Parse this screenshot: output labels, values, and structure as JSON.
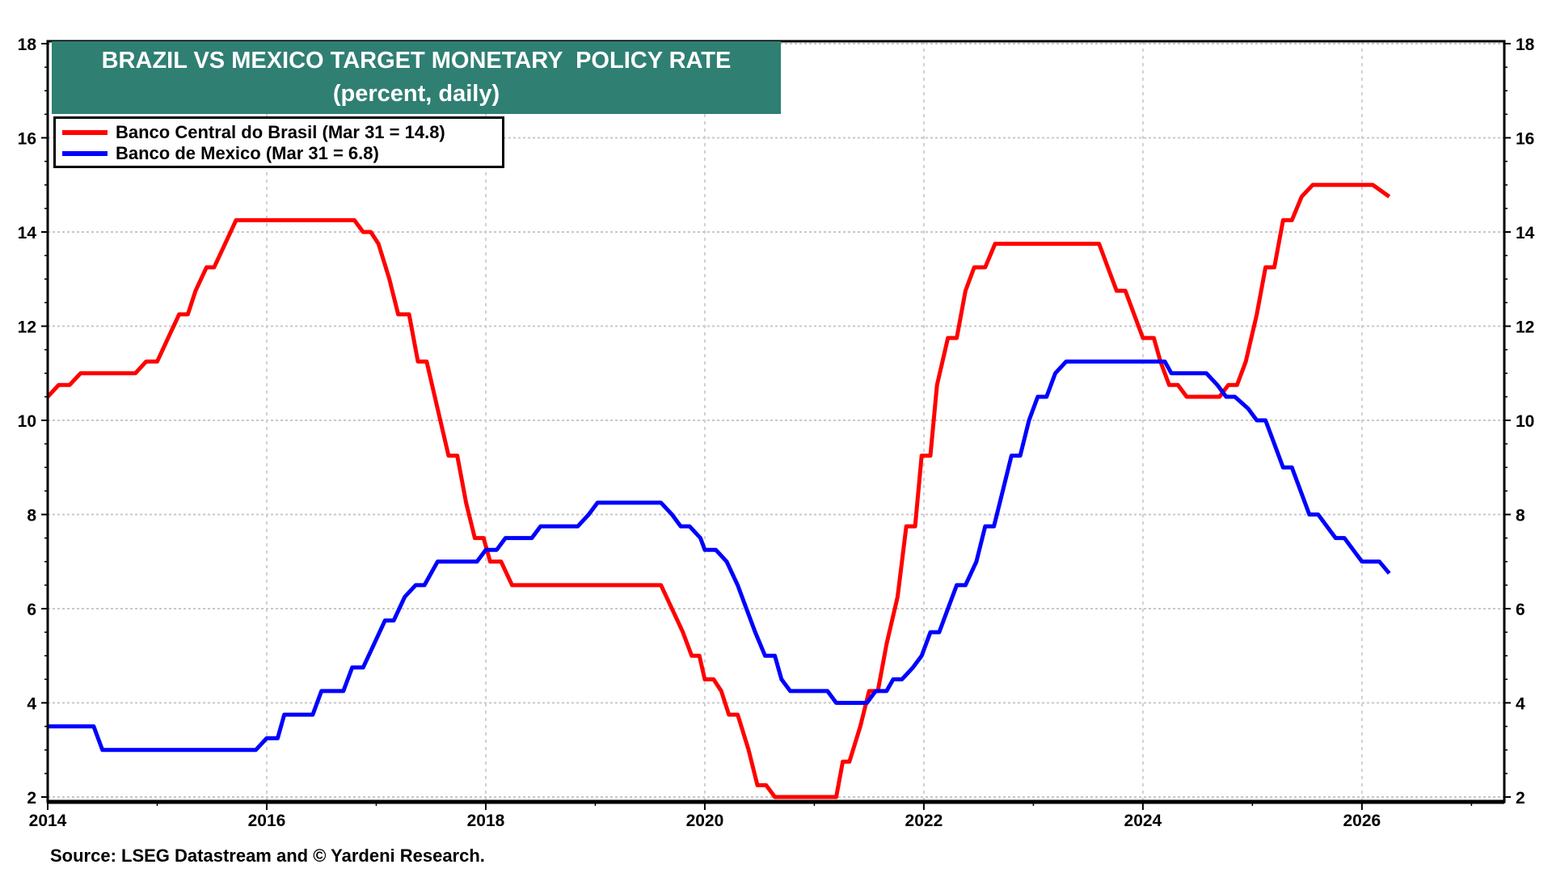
{
  "chart_data": {
    "type": "line",
    "title": "BRAZIL VS MEXICO TARGET MONETARY  POLICY RATE",
    "subtitle": "(percent, daily)",
    "xlim": [
      2014,
      2027.3
    ],
    "ylim": [
      2,
      18
    ],
    "x_ticks": [
      "2014",
      "2016",
      "2018",
      "2020",
      "2022",
      "2024",
      "2026"
    ],
    "y_ticks": [
      "2",
      "4",
      "6",
      "8",
      "10",
      "12",
      "14",
      "16",
      "18"
    ],
    "grid": true,
    "legend_placement": "top-left",
    "series": [
      {
        "name": "Banco Central do Brasil (Mar 31 = 14.8)",
        "color": "#ff0000",
        "points": [
          [
            2014.0,
            10.5
          ],
          [
            2014.1,
            10.75
          ],
          [
            2014.2,
            10.75
          ],
          [
            2014.3,
            11.0
          ],
          [
            2014.8,
            11.0
          ],
          [
            2014.9,
            11.25
          ],
          [
            2015.0,
            11.25
          ],
          [
            2015.1,
            11.75
          ],
          [
            2015.2,
            12.25
          ],
          [
            2015.28,
            12.25
          ],
          [
            2015.35,
            12.75
          ],
          [
            2015.45,
            13.25
          ],
          [
            2015.52,
            13.25
          ],
          [
            2015.62,
            13.75
          ],
          [
            2015.72,
            14.25
          ],
          [
            2016.8,
            14.25
          ],
          [
            2016.88,
            14.0
          ],
          [
            2016.95,
            14.0
          ],
          [
            2017.02,
            13.75
          ],
          [
            2017.12,
            13.0
          ],
          [
            2017.2,
            12.25
          ],
          [
            2017.3,
            12.25
          ],
          [
            2017.38,
            11.25
          ],
          [
            2017.46,
            11.25
          ],
          [
            2017.56,
            10.25
          ],
          [
            2017.66,
            9.25
          ],
          [
            2017.74,
            9.25
          ],
          [
            2017.82,
            8.25
          ],
          [
            2017.9,
            7.5
          ],
          [
            2017.98,
            7.5
          ],
          [
            2018.04,
            7.0
          ],
          [
            2018.14,
            7.0
          ],
          [
            2018.24,
            6.5
          ],
          [
            2019.6,
            6.5
          ],
          [
            2019.7,
            6.0
          ],
          [
            2019.8,
            5.5
          ],
          [
            2019.88,
            5.0
          ],
          [
            2019.95,
            5.0
          ],
          [
            2020.0,
            4.5
          ],
          [
            2020.08,
            4.5
          ],
          [
            2020.15,
            4.25
          ],
          [
            2020.22,
            3.75
          ],
          [
            2020.3,
            3.75
          ],
          [
            2020.4,
            3.0
          ],
          [
            2020.48,
            2.25
          ],
          [
            2020.56,
            2.25
          ],
          [
            2020.64,
            2.0
          ],
          [
            2021.2,
            2.0
          ],
          [
            2021.26,
            2.75
          ],
          [
            2021.32,
            2.75
          ],
          [
            2021.42,
            3.5
          ],
          [
            2021.5,
            4.25
          ],
          [
            2021.58,
            4.25
          ],
          [
            2021.66,
            5.25
          ],
          [
            2021.76,
            6.25
          ],
          [
            2021.84,
            7.75
          ],
          [
            2021.92,
            7.75
          ],
          [
            2021.98,
            9.25
          ],
          [
            2022.06,
            9.25
          ],
          [
            2022.12,
            10.75
          ],
          [
            2022.22,
            11.75
          ],
          [
            2022.3,
            11.75
          ],
          [
            2022.38,
            12.75
          ],
          [
            2022.46,
            13.25
          ],
          [
            2022.56,
            13.25
          ],
          [
            2022.65,
            13.75
          ],
          [
            2023.6,
            13.75
          ],
          [
            2023.68,
            13.25
          ],
          [
            2023.76,
            12.75
          ],
          [
            2023.84,
            12.75
          ],
          [
            2023.92,
            12.25
          ],
          [
            2024.0,
            11.75
          ],
          [
            2024.1,
            11.75
          ],
          [
            2024.16,
            11.25
          ],
          [
            2024.24,
            10.75
          ],
          [
            2024.32,
            10.75
          ],
          [
            2024.4,
            10.5
          ],
          [
            2024.7,
            10.5
          ],
          [
            2024.78,
            10.75
          ],
          [
            2024.86,
            10.75
          ],
          [
            2024.94,
            11.25
          ],
          [
            2025.04,
            12.25
          ],
          [
            2025.12,
            13.25
          ],
          [
            2025.2,
            13.25
          ],
          [
            2025.28,
            14.25
          ],
          [
            2025.36,
            14.25
          ],
          [
            2025.45,
            14.75
          ],
          [
            2025.55,
            15.0
          ],
          [
            2026.1,
            15.0
          ],
          [
            2026.25,
            14.75
          ]
        ]
      },
      {
        "name": "Banco de Mexico (Mar 31 = 6.8)",
        "color": "#0000ff",
        "points": [
          [
            2014.0,
            3.5
          ],
          [
            2014.42,
            3.5
          ],
          [
            2014.5,
            3.0
          ],
          [
            2015.9,
            3.0
          ],
          [
            2016.0,
            3.25
          ],
          [
            2016.1,
            3.25
          ],
          [
            2016.16,
            3.75
          ],
          [
            2016.42,
            3.75
          ],
          [
            2016.5,
            4.25
          ],
          [
            2016.7,
            4.25
          ],
          [
            2016.78,
            4.75
          ],
          [
            2016.88,
            4.75
          ],
          [
            2016.98,
            5.25
          ],
          [
            2017.08,
            5.75
          ],
          [
            2017.16,
            5.75
          ],
          [
            2017.26,
            6.25
          ],
          [
            2017.36,
            6.5
          ],
          [
            2017.44,
            6.5
          ],
          [
            2017.56,
            7.0
          ],
          [
            2017.92,
            7.0
          ],
          [
            2018.0,
            7.25
          ],
          [
            2018.1,
            7.25
          ],
          [
            2018.18,
            7.5
          ],
          [
            2018.42,
            7.5
          ],
          [
            2018.5,
            7.75
          ],
          [
            2018.84,
            7.75
          ],
          [
            2018.94,
            8.0
          ],
          [
            2019.02,
            8.25
          ],
          [
            2019.6,
            8.25
          ],
          [
            2019.7,
            8.0
          ],
          [
            2019.78,
            7.75
          ],
          [
            2019.86,
            7.75
          ],
          [
            2019.96,
            7.5
          ],
          [
            2020.0,
            7.25
          ],
          [
            2020.1,
            7.25
          ],
          [
            2020.2,
            7.0
          ],
          [
            2020.3,
            6.5
          ],
          [
            2020.38,
            6.0
          ],
          [
            2020.46,
            5.5
          ],
          [
            2020.55,
            5.0
          ],
          [
            2020.64,
            5.0
          ],
          [
            2020.7,
            4.5
          ],
          [
            2020.78,
            4.25
          ],
          [
            2021.12,
            4.25
          ],
          [
            2021.2,
            4.0
          ],
          [
            2021.48,
            4.0
          ],
          [
            2021.56,
            4.25
          ],
          [
            2021.66,
            4.25
          ],
          [
            2021.72,
            4.5
          ],
          [
            2021.8,
            4.5
          ],
          [
            2021.9,
            4.75
          ],
          [
            2021.98,
            5.0
          ],
          [
            2022.06,
            5.5
          ],
          [
            2022.14,
            5.5
          ],
          [
            2022.22,
            6.0
          ],
          [
            2022.3,
            6.5
          ],
          [
            2022.38,
            6.5
          ],
          [
            2022.48,
            7.0
          ],
          [
            2022.56,
            7.75
          ],
          [
            2022.64,
            7.75
          ],
          [
            2022.72,
            8.5
          ],
          [
            2022.8,
            9.25
          ],
          [
            2022.88,
            9.25
          ],
          [
            2022.96,
            10.0
          ],
          [
            2023.04,
            10.5
          ],
          [
            2023.12,
            10.5
          ],
          [
            2023.2,
            11.0
          ],
          [
            2023.3,
            11.25
          ],
          [
            2024.2,
            11.25
          ],
          [
            2024.26,
            11.0
          ],
          [
            2024.58,
            11.0
          ],
          [
            2024.68,
            10.75
          ],
          [
            2024.76,
            10.5
          ],
          [
            2024.84,
            10.5
          ],
          [
            2024.96,
            10.25
          ],
          [
            2025.04,
            10.0
          ],
          [
            2025.12,
            10.0
          ],
          [
            2025.2,
            9.5
          ],
          [
            2025.28,
            9.0
          ],
          [
            2025.36,
            9.0
          ],
          [
            2025.44,
            8.5
          ],
          [
            2025.52,
            8.0
          ],
          [
            2025.6,
            8.0
          ],
          [
            2025.68,
            7.75
          ],
          [
            2025.76,
            7.5
          ],
          [
            2025.84,
            7.5
          ],
          [
            2025.92,
            7.25
          ],
          [
            2026.0,
            7.0
          ],
          [
            2026.16,
            7.0
          ],
          [
            2026.25,
            6.75
          ]
        ]
      }
    ]
  },
  "source": "Source: LSEG Datastream and © Yardeni Research."
}
